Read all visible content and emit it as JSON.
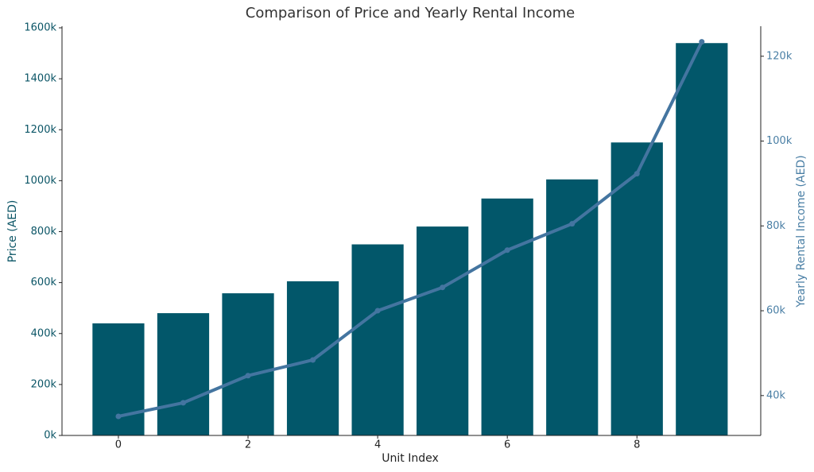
{
  "chart_data": {
    "type": "bar_line",
    "title": "Comparison of Price and Yearly Rental Income",
    "x_label": "Unit Index",
    "y_label": "Price (AED)",
    "y2_label": "Yearly Rental Income (AED)",
    "x": [
      0,
      1,
      2,
      3,
      4,
      5,
      6,
      7,
      8,
      9
    ],
    "xlim": [
      -0.87,
      9.91
    ],
    "xticks": [
      0,
      2,
      4,
      6,
      8
    ],
    "ylim": [
      0,
      1600
    ],
    "yticks": [
      {
        "value": 0,
        "label": "0k"
      },
      {
        "value": 200,
        "label": "200k"
      },
      {
        "value": 400,
        "label": "400k"
      },
      {
        "value": 600,
        "label": "600k"
      },
      {
        "value": 800,
        "label": "800k"
      },
      {
        "value": 1000,
        "label": "1000k"
      },
      {
        "value": 1200,
        "label": "1200k"
      },
      {
        "value": 1400,
        "label": "1400k"
      },
      {
        "value": 1600,
        "label": "1600k"
      }
    ],
    "y2lim": [
      30.6,
      126.7
    ],
    "y2ticks": [
      {
        "value": 40,
        "label": "40k"
      },
      {
        "value": 60,
        "label": "60k"
      },
      {
        "value": 80,
        "label": "80k"
      },
      {
        "value": 100,
        "label": "100k"
      },
      {
        "value": 120,
        "label": "120k"
      }
    ],
    "y_color": "#0b5566",
    "y2_color": "#4a7fa5",
    "series": [
      {
        "type": "bar",
        "color": "#02576a",
        "values": [
          440,
          480,
          558,
          605,
          750,
          820,
          930,
          1005,
          1150,
          1540
        ]
      },
      {
        "type": "line",
        "axis": "y2",
        "color": "#4475a0",
        "values": [
          35.1,
          38.3,
          44.7,
          48.4,
          60,
          65.5,
          74.3,
          80.5,
          92.3,
          123.4
        ]
      }
    ]
  }
}
